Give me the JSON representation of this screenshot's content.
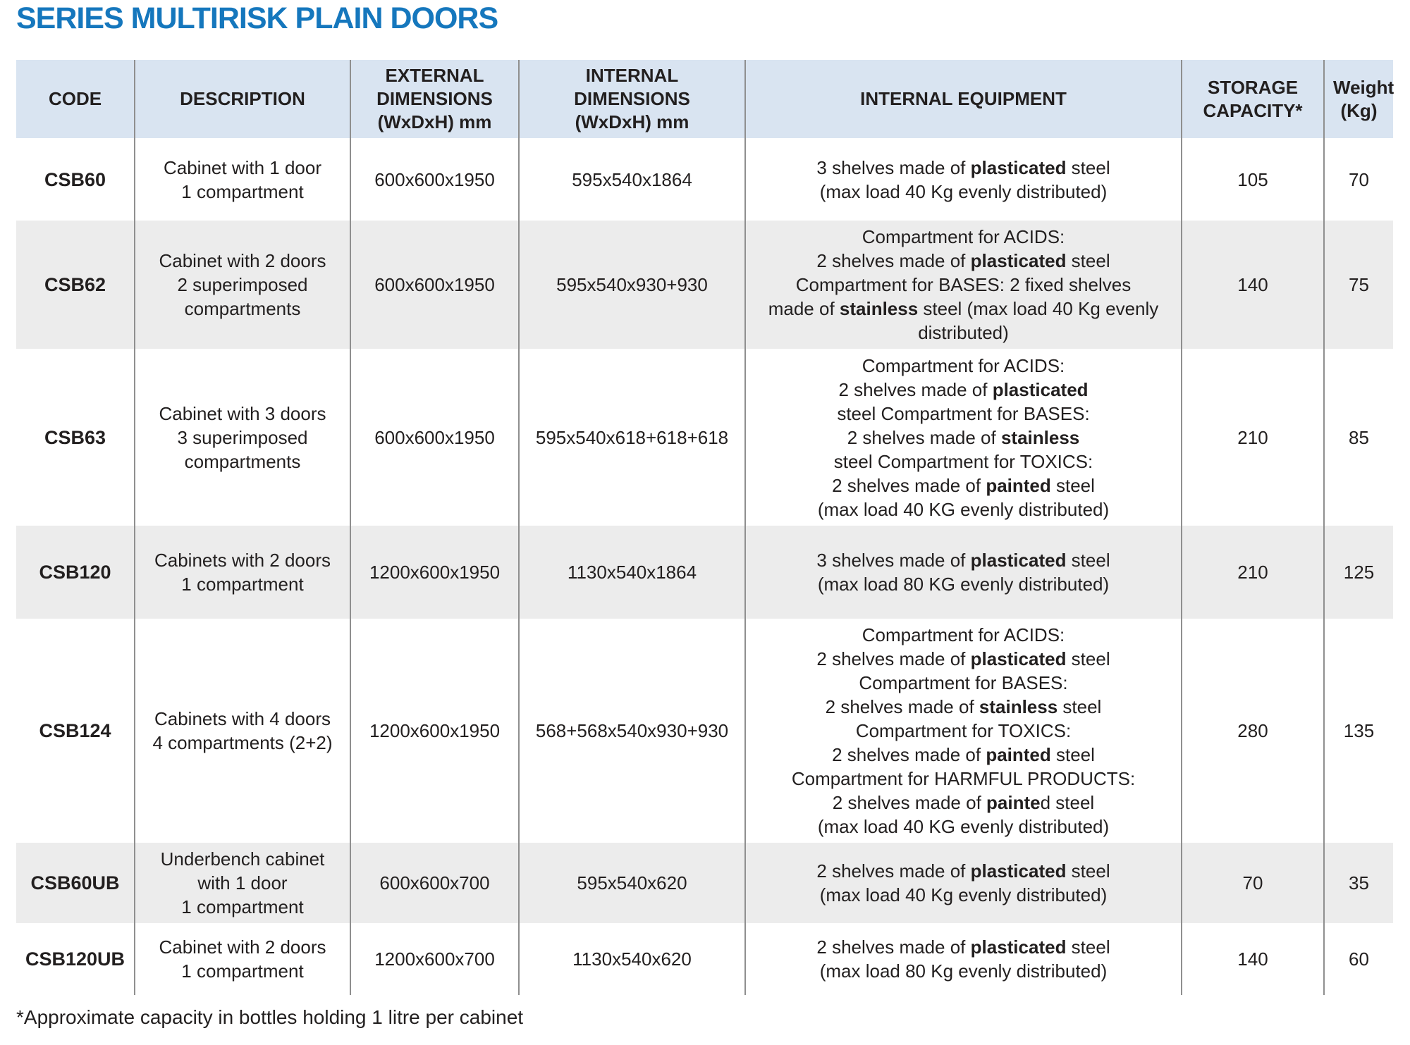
{
  "title": "SERIES MULTIRISK PLAIN DOORS",
  "footnote": "*Approximate capacity in bottles holding 1 litre per cabinet",
  "colors": {
    "title": "#1577bd",
    "header_bg": "#d9e4f1",
    "alt_row_bg": "#ececec",
    "grid_line": "#8f8f8f"
  },
  "table": {
    "columns": [
      {
        "key": "code",
        "label": "CODE"
      },
      {
        "key": "description",
        "label": "DESCRIPTION"
      },
      {
        "key": "external",
        "label": "EXTERNAL\nDIMENSIONS\n(WxDxH) mm"
      },
      {
        "key": "internal",
        "label": "INTERNAL\nDIMENSIONS\n(WxDxH) mm"
      },
      {
        "key": "equipment",
        "label": "INTERNAL EQUIPMENT"
      },
      {
        "key": "capacity",
        "label": "STORAGE\nCAPACITY*"
      },
      {
        "key": "weight",
        "label": "Weight\n(Kg)"
      }
    ],
    "rows": [
      {
        "code": "CSB60",
        "description": "Cabinet with 1 door\n1 compartment",
        "external": "600x600x1950",
        "internal": "595x540x1864",
        "equipment": [
          [
            {
              "t": "3 shelves made of "
            },
            {
              "t": "plasticated",
              "b": true
            },
            {
              "t": " steel"
            }
          ],
          [
            {
              "t": "(max load 40 Kg evenly distributed)"
            }
          ]
        ],
        "capacity": "105",
        "weight": "70"
      },
      {
        "code": "CSB62",
        "description": "Cabinet with 2 doors\n2 superimposed\ncompartments",
        "external": "600x600x1950",
        "internal": "595x540x930+930",
        "equipment": [
          [
            {
              "t": "Compartment for ACIDS:"
            }
          ],
          [
            {
              "t": "2 shelves made of "
            },
            {
              "t": "plasticated",
              "b": true
            },
            {
              "t": " steel"
            }
          ],
          [
            {
              "t": "Compartment for BASES: 2 fixed shelves"
            }
          ],
          [
            {
              "t": "made of "
            },
            {
              "t": "stainless",
              "b": true
            },
            {
              "t": " steel (max load 40 Kg evenly"
            }
          ],
          [
            {
              "t": "distributed)"
            }
          ]
        ],
        "capacity": "140",
        "weight": "75"
      },
      {
        "code": "CSB63",
        "description": "Cabinet with 3 doors\n3 superimposed\ncompartments",
        "external": "600x600x1950",
        "internal": "595x540x618+618+618",
        "equipment": [
          [
            {
              "t": "Compartment for ACIDS:"
            }
          ],
          [
            {
              "t": "2 shelves made of "
            },
            {
              "t": "plasticated",
              "b": true
            }
          ],
          [
            {
              "t": "steel Compartment for BASES:"
            }
          ],
          [
            {
              "t": "2 shelves made of "
            },
            {
              "t": "stainless",
              "b": true
            }
          ],
          [
            {
              "t": "steel Compartment for TOXICS:"
            }
          ],
          [
            {
              "t": "2 shelves made of "
            },
            {
              "t": "painted",
              "b": true
            },
            {
              "t": " steel"
            }
          ],
          [
            {
              "t": "(max load 40 KG evenly distributed)"
            }
          ]
        ],
        "capacity": "210",
        "weight": "85"
      },
      {
        "code": "CSB120",
        "description": "Cabinets with 2 doors\n1 compartment",
        "external": "1200x600x1950",
        "internal": "1130x540x1864",
        "equipment": [
          [
            {
              "t": "3 shelves made of "
            },
            {
              "t": "plasticated",
              "b": true
            },
            {
              "t": " steel"
            }
          ],
          [
            {
              "t": "(max load 80 KG evenly distributed)"
            }
          ]
        ],
        "capacity": "210",
        "weight": "125"
      },
      {
        "code": "CSB124",
        "description": "Cabinets with 4 doors\n4 compartments (2+2)",
        "external": "1200x600x1950",
        "internal": "568+568x540x930+930",
        "equipment": [
          [
            {
              "t": "Compartment for ACIDS:"
            }
          ],
          [
            {
              "t": "2 shelves made of "
            },
            {
              "t": "plasticated",
              "b": true
            },
            {
              "t": " steel"
            }
          ],
          [
            {
              "t": "Compartment for BASES:"
            }
          ],
          [
            {
              "t": "2 shelves made of "
            },
            {
              "t": "stainless",
              "b": true
            },
            {
              "t": " steel"
            }
          ],
          [
            {
              "t": "Compartment for TOXICS:"
            }
          ],
          [
            {
              "t": "2 shelves made of "
            },
            {
              "t": "painted",
              "b": true
            },
            {
              "t": " steel"
            }
          ],
          [
            {
              "t": "Compartment for HARMFUL PRODUCTS:"
            }
          ],
          [
            {
              "t": "2 shelves made of "
            },
            {
              "t": "painte",
              "b": true
            },
            {
              "t": "d steel"
            }
          ],
          [
            {
              "t": "(max load 40 KG evenly distributed)"
            }
          ]
        ],
        "capacity": "280",
        "weight": "135"
      },
      {
        "code": "CSB60UB",
        "description": "Underbench cabinet\nwith 1 door\n1 compartment",
        "external": "600x600x700",
        "internal": "595x540x620",
        "equipment": [
          [
            {
              "t": "2 shelves made of "
            },
            {
              "t": "plasticated",
              "b": true
            },
            {
              "t": " steel"
            }
          ],
          [
            {
              "t": "(max load 40 Kg evenly distributed)"
            }
          ]
        ],
        "capacity": "70",
        "weight": "35"
      },
      {
        "code": "CSB120UB",
        "description": "Cabinet with 2 doors\n1 compartment",
        "external": "1200x600x700",
        "internal": "1130x540x620",
        "equipment": [
          [
            {
              "t": "2 shelves made of "
            },
            {
              "t": "plasticated",
              "b": true
            },
            {
              "t": " steel"
            }
          ],
          [
            {
              "t": "(max load 80 Kg evenly distributed)"
            }
          ]
        ],
        "capacity": "140",
        "weight": "60"
      }
    ]
  }
}
